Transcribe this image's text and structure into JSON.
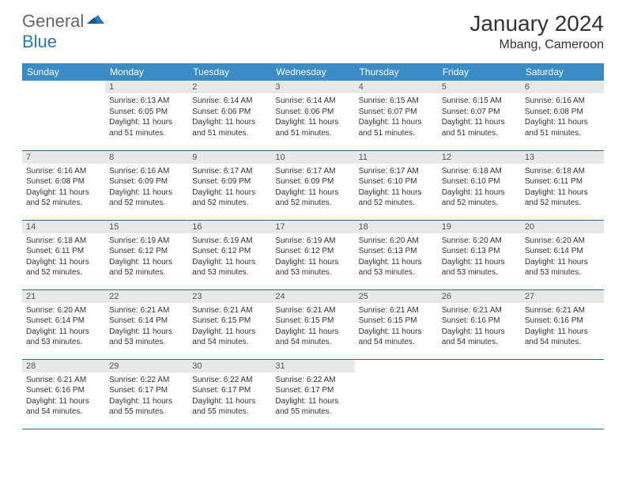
{
  "logo": {
    "general": "General",
    "blue": "Blue"
  },
  "header": {
    "month_title": "January 2024",
    "location": "Mbang, Cameroon"
  },
  "colors": {
    "header_bg": "#3b8bc4",
    "header_text": "#ffffff",
    "daynum_bg": "#e8e8e8",
    "daynum_text": "#555555",
    "row_border": "#2a6a9c",
    "logo_gray": "#666666",
    "logo_blue": "#2a7ab8",
    "body_text": "#333333"
  },
  "weekdays": [
    "Sunday",
    "Monday",
    "Tuesday",
    "Wednesday",
    "Thursday",
    "Friday",
    "Saturday"
  ],
  "labels": {
    "sunrise": "Sunrise:",
    "sunset": "Sunset:",
    "daylight": "Daylight:"
  },
  "weeks": [
    [
      null,
      {
        "n": "1",
        "sr": "6:13 AM",
        "ss": "6:05 PM",
        "dl": "11 hours and 51 minutes."
      },
      {
        "n": "2",
        "sr": "6:14 AM",
        "ss": "6:06 PM",
        "dl": "11 hours and 51 minutes."
      },
      {
        "n": "3",
        "sr": "6:14 AM",
        "ss": "6:06 PM",
        "dl": "11 hours and 51 minutes."
      },
      {
        "n": "4",
        "sr": "6:15 AM",
        "ss": "6:07 PM",
        "dl": "11 hours and 51 minutes."
      },
      {
        "n": "5",
        "sr": "6:15 AM",
        "ss": "6:07 PM",
        "dl": "11 hours and 51 minutes."
      },
      {
        "n": "6",
        "sr": "6:16 AM",
        "ss": "6:08 PM",
        "dl": "11 hours and 51 minutes."
      }
    ],
    [
      {
        "n": "7",
        "sr": "6:16 AM",
        "ss": "6:08 PM",
        "dl": "11 hours and 52 minutes."
      },
      {
        "n": "8",
        "sr": "6:16 AM",
        "ss": "6:09 PM",
        "dl": "11 hours and 52 minutes."
      },
      {
        "n": "9",
        "sr": "6:17 AM",
        "ss": "6:09 PM",
        "dl": "11 hours and 52 minutes."
      },
      {
        "n": "10",
        "sr": "6:17 AM",
        "ss": "6:09 PM",
        "dl": "11 hours and 52 minutes."
      },
      {
        "n": "11",
        "sr": "6:17 AM",
        "ss": "6:10 PM",
        "dl": "11 hours and 52 minutes."
      },
      {
        "n": "12",
        "sr": "6:18 AM",
        "ss": "6:10 PM",
        "dl": "11 hours and 52 minutes."
      },
      {
        "n": "13",
        "sr": "6:18 AM",
        "ss": "6:11 PM",
        "dl": "11 hours and 52 minutes."
      }
    ],
    [
      {
        "n": "14",
        "sr": "6:18 AM",
        "ss": "6:11 PM",
        "dl": "11 hours and 52 minutes."
      },
      {
        "n": "15",
        "sr": "6:19 AM",
        "ss": "6:12 PM",
        "dl": "11 hours and 52 minutes."
      },
      {
        "n": "16",
        "sr": "6:19 AM",
        "ss": "6:12 PM",
        "dl": "11 hours and 53 minutes."
      },
      {
        "n": "17",
        "sr": "6:19 AM",
        "ss": "6:12 PM",
        "dl": "11 hours and 53 minutes."
      },
      {
        "n": "18",
        "sr": "6:20 AM",
        "ss": "6:13 PM",
        "dl": "11 hours and 53 minutes."
      },
      {
        "n": "19",
        "sr": "6:20 AM",
        "ss": "6:13 PM",
        "dl": "11 hours and 53 minutes."
      },
      {
        "n": "20",
        "sr": "6:20 AM",
        "ss": "6:14 PM",
        "dl": "11 hours and 53 minutes."
      }
    ],
    [
      {
        "n": "21",
        "sr": "6:20 AM",
        "ss": "6:14 PM",
        "dl": "11 hours and 53 minutes."
      },
      {
        "n": "22",
        "sr": "6:21 AM",
        "ss": "6:14 PM",
        "dl": "11 hours and 53 minutes."
      },
      {
        "n": "23",
        "sr": "6:21 AM",
        "ss": "6:15 PM",
        "dl": "11 hours and 54 minutes."
      },
      {
        "n": "24",
        "sr": "6:21 AM",
        "ss": "6:15 PM",
        "dl": "11 hours and 54 minutes."
      },
      {
        "n": "25",
        "sr": "6:21 AM",
        "ss": "6:15 PM",
        "dl": "11 hours and 54 minutes."
      },
      {
        "n": "26",
        "sr": "6:21 AM",
        "ss": "6:16 PM",
        "dl": "11 hours and 54 minutes."
      },
      {
        "n": "27",
        "sr": "6:21 AM",
        "ss": "6:16 PM",
        "dl": "11 hours and 54 minutes."
      }
    ],
    [
      {
        "n": "28",
        "sr": "6:21 AM",
        "ss": "6:16 PM",
        "dl": "11 hours and 54 minutes."
      },
      {
        "n": "29",
        "sr": "6:22 AM",
        "ss": "6:17 PM",
        "dl": "11 hours and 55 minutes."
      },
      {
        "n": "30",
        "sr": "6:22 AM",
        "ss": "6:17 PM",
        "dl": "11 hours and 55 minutes."
      },
      {
        "n": "31",
        "sr": "6:22 AM",
        "ss": "6:17 PM",
        "dl": "11 hours and 55 minutes."
      },
      null,
      null,
      null
    ]
  ]
}
